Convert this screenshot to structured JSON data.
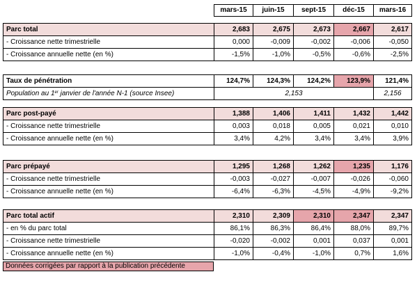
{
  "headers": [
    "mars-15",
    "juin-15",
    "sept-15",
    "déc-15",
    "mars-16"
  ],
  "parc_total": {
    "label": "Parc total",
    "values": [
      "2,683",
      "2,675",
      "2,673",
      "2,667",
      "2,617"
    ],
    "rows": [
      {
        "label": "- Croissance nette trimestrielle",
        "values": [
          "0,000",
          "-0,009",
          "-0,002",
          "-0,006",
          "-0,050"
        ]
      },
      {
        "label": "- Croissance annuelle nette (en %)",
        "values": [
          "-1,5%",
          "-1,0%",
          "-0,5%",
          "-0,6%",
          "-2,5%"
        ]
      }
    ]
  },
  "penetration": {
    "label": "Taux de pénétration",
    "values": [
      "124,7%",
      "124,3%",
      "124,2%",
      "123,9%",
      "121,4%"
    ],
    "population_label_pre": "Population au 1",
    "population_label_sup": "er",
    "population_label_post": " janvier de l'année N-1 (source Insee)",
    "population_2015": "2,153",
    "population_2016": "2,156"
  },
  "post_paye": {
    "label": "Parc post-payé",
    "values": [
      "1,388",
      "1,406",
      "1,411",
      "1,432",
      "1,442"
    ],
    "rows": [
      {
        "label": "- Croissance nette trimestrielle",
        "values": [
          "0,003",
          "0,018",
          "0,005",
          "0,021",
          "0,010"
        ]
      },
      {
        "label": "- Croissance annuelle nette (en %)",
        "values": [
          "3,4%",
          "4,2%",
          "3,4%",
          "3,4%",
          "3,9%"
        ]
      }
    ]
  },
  "prepaye": {
    "label": "Parc prépayé",
    "values": [
      "1,295",
      "1,268",
      "1,262",
      "1,235",
      "1,176"
    ],
    "rows": [
      {
        "label": "- Croissance nette trimestrielle",
        "values": [
          "-0,003",
          "-0,027",
          "-0,007",
          "-0,026",
          "-0,060"
        ]
      },
      {
        "label": "- Croissance annuelle nette (en %)",
        "values": [
          "-6,4%",
          "-6,3%",
          "-4,5%",
          "-4,9%",
          "-9,2%"
        ]
      }
    ]
  },
  "total_actif": {
    "label": "Parc total actif",
    "values": [
      "2,310",
      "2,309",
      "2,310",
      "2,347",
      "2,347"
    ],
    "rows": [
      {
        "label": "- en % du parc total",
        "values": [
          "86,1%",
          "86,3%",
          "86,4%",
          "88,0%",
          "89,7%"
        ]
      },
      {
        "label": "- Croissance nette trimestrielle",
        "values": [
          "-0,020",
          "-0,002",
          "0,001",
          "0,037",
          "0,001"
        ]
      },
      {
        "label": "- Croissance annuelle nette (en %)",
        "values": [
          "-1,0%",
          "-0,4%",
          "-1,0%",
          "0,7%",
          "1,6%"
        ]
      }
    ]
  },
  "note": "Données corrigées par rapport à la publication précédente",
  "colors": {
    "section_fill": "#f2dcdb",
    "highlight": "#e6a5ab"
  }
}
